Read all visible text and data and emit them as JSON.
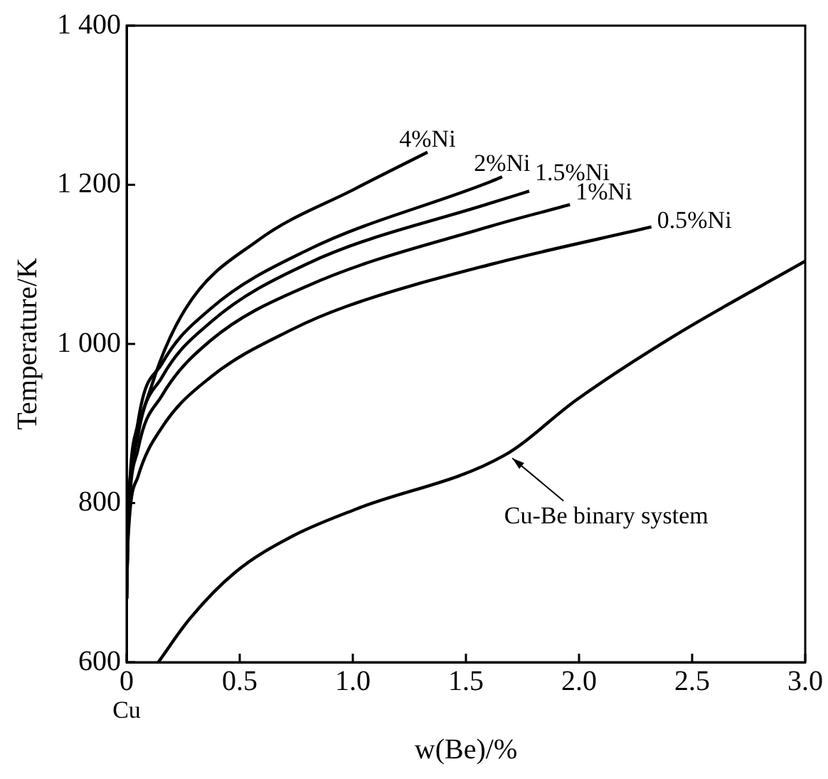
{
  "chart_data": {
    "type": "line",
    "xlabel": "w(Be)/%",
    "ylabel": "Temperature/K",
    "xlim": [
      0,
      3.0
    ],
    "ylim": [
      600,
      1400
    ],
    "xticks": [
      0,
      0.5,
      {
        "value": 1,
        "label": "1.0"
      },
      1.5,
      {
        "value": 2,
        "label": "2.0"
      },
      2.5,
      {
        "value": 3,
        "label": "3.0"
      }
    ],
    "yticks": [
      600,
      800,
      {
        "value": 1000,
        "label": "1 000"
      },
      {
        "value": 1200,
        "label": "1 200"
      },
      {
        "value": 1400,
        "label": "1 400"
      }
    ],
    "grid": false,
    "legend": false,
    "marker": "none",
    "line_style": "solid",
    "series": [
      {
        "name": "4%Ni",
        "color": "#000000",
        "x": [
          0,
          0.005,
          0.03,
          0.11,
          0.26,
          0.58,
          1.01,
          1.33
        ],
        "values": [
          680,
          770,
          855,
          947,
          1044,
          1130,
          1195,
          1241
        ]
      },
      {
        "name": "2%Ni",
        "color": "#000000",
        "x": [
          0,
          0.005,
          0.05,
          0.156,
          0.37,
          0.8,
          1.61,
          1.66
        ],
        "values": [
          680,
          760,
          901,
          975,
          1044,
          1118,
          1204,
          1210
        ]
      },
      {
        "name": "1.5%Ni",
        "color": "#000000",
        "x": [
          0,
          0.005,
          0.05,
          0.156,
          0.37,
          0.8,
          1.61,
          1.78
        ],
        "values": [
          680,
          755,
          884,
          958,
          1027,
          1101,
          1177,
          1192
        ]
      },
      {
        "name": "1%Ni",
        "color": "#000000",
        "x": [
          0,
          0.005,
          0.05,
          0.156,
          0.37,
          0.8,
          1.61,
          1.96
        ],
        "values": [
          680,
          752,
          867,
          935,
          1004,
          1073,
          1148,
          1175
        ]
      },
      {
        "name": "0.5%Ni",
        "color": "#000000",
        "x": [
          0,
          0.006,
          0.05,
          0.156,
          0.37,
          0.73,
          0.97,
          1.61,
          2.32
        ],
        "values": [
          680,
          752,
          833,
          895,
          958,
          1018,
          1047,
          1100,
          1147
        ]
      },
      {
        "color": "#000000",
        "x": [
          0.14,
          0.28,
          0.48,
          0.73,
          1.01,
          1.67,
          1.99,
          2.42,
          3.0
        ],
        "values": [
          600,
          655,
          713,
          758,
          792,
          860,
          930,
          1010,
          1104
        ]
      }
    ],
    "annotations": [
      "Cu",
      {
        "text": "Cu-Be binary system",
        "x": 1.68,
        "y": 860
      }
    ]
  }
}
